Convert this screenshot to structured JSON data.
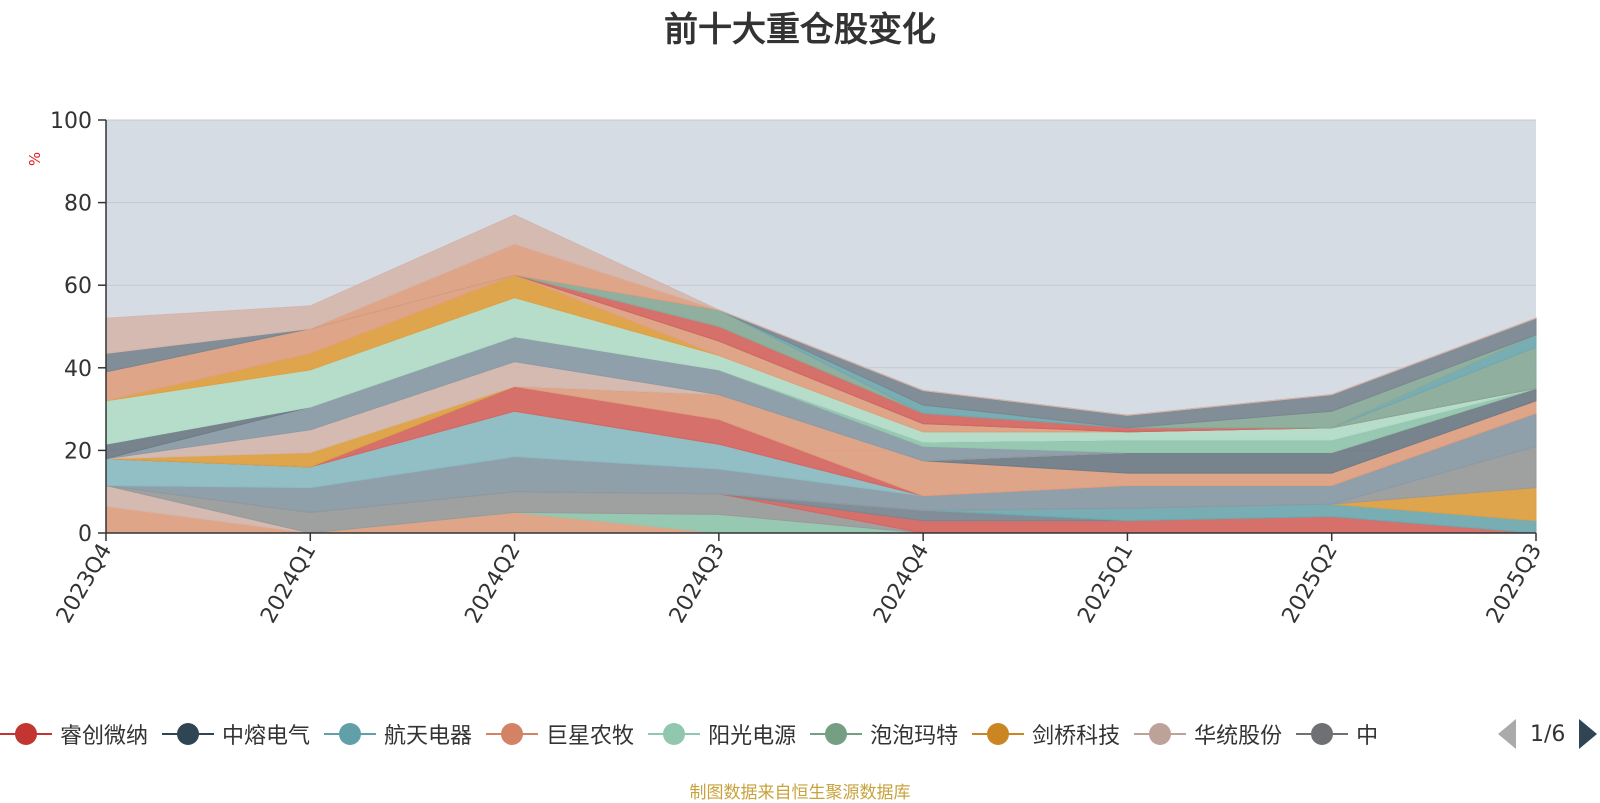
{
  "title": "前十大重仓股变化",
  "unit_label": "%",
  "source": "制图数据来自恒生聚源数据库",
  "pager": {
    "text": "1/6"
  },
  "legend": [
    {
      "name": "睿创微纳",
      "color": "#c23531"
    },
    {
      "name": "中熔电气",
      "color": "#2f4554"
    },
    {
      "name": "航天电器",
      "color": "#61a0a8"
    },
    {
      "name": "巨星农牧",
      "color": "#d48265"
    },
    {
      "name": "阳光电源",
      "color": "#91c7ae"
    },
    {
      "name": "泡泡玛特",
      "color": "#749f83"
    },
    {
      "name": "剑桥科技",
      "color": "#ca8622"
    },
    {
      "name": "华统股份",
      "color": "#bda29a"
    },
    {
      "name": "中",
      "color": "#6e7074"
    }
  ],
  "chart_data": {
    "type": "area",
    "title": "前十大重仓股变化",
    "ylabel": "%",
    "xlabel": "",
    "ylim": [
      0,
      100
    ],
    "yticks": [
      0,
      20,
      40,
      60,
      80,
      100
    ],
    "categories": [
      "2023Q4",
      "2024Q1",
      "2024Q2",
      "2024Q3",
      "2024Q4",
      "2025Q1",
      "2025Q2",
      "2025Q3"
    ],
    "background_color": "#d6dce3",
    "bands": [
      {
        "color": "#e0a080",
        "values": [
          6.5,
          0,
          5,
          0,
          0,
          0,
          0,
          0
        ]
      },
      {
        "color": "#d4b6ad",
        "values": [
          5,
          0,
          0,
          0,
          0,
          0,
          0,
          0
        ]
      },
      {
        "color": "#91c7ae",
        "values": [
          0,
          0,
          0,
          4.5,
          0,
          0,
          0,
          0
        ]
      },
      {
        "color": "#9a9a9a",
        "values": [
          0,
          5,
          5,
          5,
          0,
          0,
          0,
          0
        ]
      },
      {
        "color": "#d6665f",
        "values": [
          0,
          0,
          0,
          0,
          3,
          3,
          4,
          0
        ]
      },
      {
        "color": "#7a8690",
        "values": [
          0,
          0,
          0,
          0,
          2.5,
          0,
          0,
          0
        ]
      },
      {
        "color": "#70a8b0",
        "values": [
          0,
          0,
          0,
          0,
          0,
          3,
          3,
          3
        ]
      },
      {
        "color": "#e0a040",
        "values": [
          0,
          0,
          0,
          0,
          0,
          0,
          0,
          8
        ]
      },
      {
        "color": "#9a9a9a",
        "values": [
          0,
          0,
          0,
          0,
          0,
          0,
          0,
          10
        ]
      },
      {
        "color": "#8a9aa6",
        "values": [
          0,
          6,
          8.5,
          6,
          3.5,
          5.5,
          4.5,
          8
        ]
      },
      {
        "color": "#8cbbc2",
        "values": [
          6.5,
          5,
          11,
          6,
          0,
          0,
          0,
          0
        ]
      },
      {
        "color": "#d6665f",
        "values": [
          0,
          0,
          6,
          6,
          0,
          0,
          0,
          0
        ]
      },
      {
        "color": "#e0a080",
        "values": [
          0,
          0,
          0,
          6,
          8.5,
          3,
          3,
          3
        ]
      },
      {
        "color": "#6f7b86",
        "values": [
          0,
          0,
          0,
          0,
          0,
          5,
          5,
          3
        ]
      },
      {
        "color": "#e0a040",
        "values": [
          0,
          3.5,
          0,
          0,
          0,
          0,
          0,
          0
        ]
      },
      {
        "color": "#d4b6ad",
        "values": [
          0,
          5.5,
          6,
          0,
          0,
          0,
          0,
          0
        ]
      },
      {
        "color": "#8a9aa6",
        "values": [
          0,
          5.5,
          6,
          6,
          3.5,
          0,
          0,
          0
        ]
      },
      {
        "color": "#91c7ae",
        "values": [
          0,
          0,
          0,
          0,
          1,
          3,
          3,
          0
        ]
      },
      {
        "color": "#6f7b86",
        "values": [
          3.5,
          0,
          0,
          0,
          0,
          0,
          0,
          0
        ]
      },
      {
        "color": "#b2dcc8",
        "values": [
          10.5,
          9,
          9.5,
          3.5,
          2.5,
          2,
          3,
          0
        ]
      },
      {
        "color": "#e0a040",
        "values": [
          0,
          4,
          5.5,
          0,
          0,
          0,
          0,
          0
        ]
      },
      {
        "color": "#e0a080",
        "values": [
          7,
          6,
          0,
          3.5,
          2,
          0,
          0,
          0
        ]
      },
      {
        "color": "#7a8690",
        "values": [
          4.5,
          0,
          0,
          0,
          0,
          0,
          0,
          0
        ]
      },
      {
        "color": "#d6665f",
        "values": [
          0,
          0,
          0,
          3.5,
          2.5,
          1,
          0,
          0
        ]
      },
      {
        "color": "#8aaa98",
        "values": [
          0,
          0,
          0,
          4,
          0,
          0,
          0,
          10
        ]
      },
      {
        "color": "#70a8b0",
        "values": [
          0,
          0,
          0,
          0,
          2,
          0,
          0,
          3
        ]
      },
      {
        "color": "#8aaa98",
        "values": [
          0,
          0,
          0,
          0,
          0,
          0,
          4,
          0
        ]
      },
      {
        "color": "#7a8690",
        "values": [
          0,
          0,
          0,
          0,
          3.5,
          3,
          4,
          4
        ]
      },
      {
        "color": "#e0a080",
        "values": [
          0,
          0,
          7.5,
          0,
          0,
          0,
          0,
          0
        ]
      },
      {
        "color": "#d4b6ad",
        "values": [
          8.5,
          5.5,
          7,
          0,
          0,
          0,
          0,
          0
        ]
      }
    ]
  }
}
